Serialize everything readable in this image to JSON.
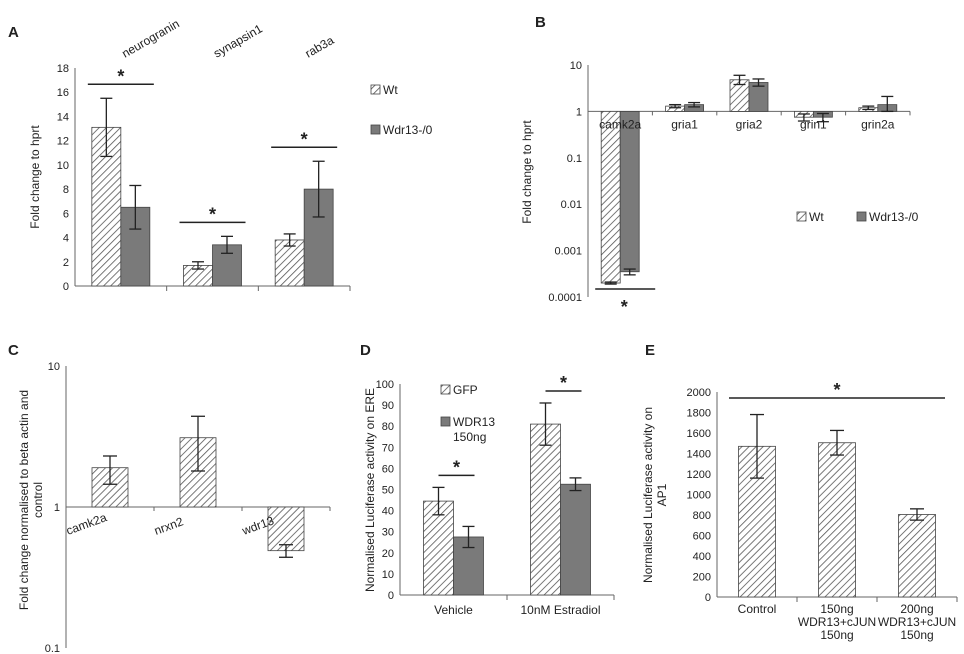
{
  "panels": {
    "A": "A",
    "B": "B",
    "C": "C",
    "D": "D",
    "E": "E"
  },
  "chart_data": [
    {
      "id": "A",
      "type": "bar",
      "categories": [
        "neurogranin",
        "synapsin1",
        "rab3a"
      ],
      "series": [
        {
          "name": "Wt",
          "values": [
            13.1,
            1.7,
            3.8
          ],
          "errors": [
            2.4,
            0.3,
            0.5
          ]
        },
        {
          "name": "Wdr13-/0",
          "values": [
            6.5,
            3.4,
            8.0
          ],
          "errors": [
            1.8,
            0.7,
            2.3
          ]
        }
      ],
      "ylabel": "Fold change to hprt",
      "ylim": [
        0,
        18
      ],
      "yticks": [
        "0",
        "2",
        "4",
        "6",
        "8",
        "10",
        "12",
        "14",
        "16",
        "18"
      ],
      "legend": {
        "position": "right",
        "entries": [
          "Wt",
          "Wdr13-/0"
        ]
      },
      "significance": [
        {
          "group": 0,
          "label": "*"
        },
        {
          "group": 1,
          "label": "*"
        },
        {
          "group": 2,
          "label": "*"
        }
      ]
    },
    {
      "id": "B",
      "type": "bar",
      "scale": "log",
      "categories": [
        "camk2a",
        "gria1",
        "gria2",
        "grin1",
        "grin2a"
      ],
      "series": [
        {
          "name": "Wt",
          "values": [
            0.0002,
            1.3,
            4.8,
            0.75,
            1.2
          ],
          "errors_low": [
            0.00019,
            1.2,
            3.8,
            0.62,
            1.1
          ],
          "errors_high": [
            0.00021,
            1.4,
            6.0,
            0.88,
            1.3
          ]
        },
        {
          "name": "Wdr13-/0",
          "values": [
            0.00035,
            1.4,
            4.2,
            0.75,
            1.4
          ],
          "errors_low": [
            0.0003,
            1.25,
            3.5,
            0.6,
            1.0
          ],
          "errors_high": [
            0.0004,
            1.55,
            5.0,
            0.9,
            2.1
          ]
        }
      ],
      "ylabel": "Fold change to hprt",
      "ylim": [
        0.0001,
        10
      ],
      "yticks": [
        "0.0001",
        "0.001",
        "0.01",
        "0.1",
        "1",
        "10"
      ],
      "legend": {
        "position": "center-right",
        "entries": [
          "Wt",
          "Wdr13-/0"
        ]
      },
      "significance": [
        {
          "group": 0,
          "label": "*"
        }
      ]
    },
    {
      "id": "C",
      "type": "bar",
      "scale": "log",
      "categories": [
        "camk2a",
        "nrxn2",
        "wdr13"
      ],
      "values": [
        1.9,
        3.1,
        0.49
      ],
      "errors_low": [
        1.45,
        1.8,
        0.44
      ],
      "errors_high": [
        2.3,
        4.4,
        0.54
      ],
      "ylabel": "Fold change normalised to beta actin and control",
      "ylabel_lines": [
        "Fold change normalised to beta actin and",
        "control"
      ],
      "ylim": [
        0.1,
        10
      ],
      "yticks": [
        "0.1",
        "1",
        "10"
      ]
    },
    {
      "id": "D",
      "type": "bar",
      "categories": [
        "Vehicle",
        "10nM Estradiol"
      ],
      "series": [
        {
          "name": "GFP",
          "values": [
            44.5,
            81
          ],
          "errors": [
            6.5,
            10
          ]
        },
        {
          "name": "WDR13 150ng",
          "values": [
            27.5,
            52.5
          ],
          "errors": [
            5,
            3
          ]
        }
      ],
      "ylabel": "Normalised Luciferase activity on ERE",
      "ylim": [
        0,
        100
      ],
      "yticks": [
        "0",
        "10",
        "20",
        "30",
        "40",
        "50",
        "60",
        "70",
        "80",
        "90",
        "100"
      ],
      "legend": {
        "position": "top-left",
        "entries": [
          "GFP",
          "WDR13",
          "150ng"
        ]
      },
      "significance": [
        {
          "group": 0,
          "label": "*"
        },
        {
          "group": 1,
          "label": "*"
        }
      ]
    },
    {
      "id": "E",
      "type": "bar",
      "categories": [
        "Control",
        "150ng WDR13+cJUN 150ng",
        "200ng WDR13+cJUN 150ng"
      ],
      "category_lines": [
        [
          "Control"
        ],
        [
          "150ng",
          "WDR13+cJUN",
          "150ng"
        ],
        [
          "200ng",
          "WDR13+cJUN",
          "150ng"
        ]
      ],
      "values": [
        1470,
        1505,
        805
      ],
      "errors": [
        310,
        120,
        55
      ],
      "ylabel": "Normalised Luciferase activity on AP1",
      "ylabel_lines": [
        "Normalised Luciferase activity on",
        "AP1"
      ],
      "ylim": [
        0,
        2000
      ],
      "yticks": [
        "0",
        "200",
        "400",
        "600",
        "800",
        "1000",
        "1200",
        "1400",
        "1600",
        "1800",
        "2000"
      ],
      "significance": [
        {
          "span": [
            0,
            2
          ],
          "label": "*"
        }
      ]
    }
  ]
}
